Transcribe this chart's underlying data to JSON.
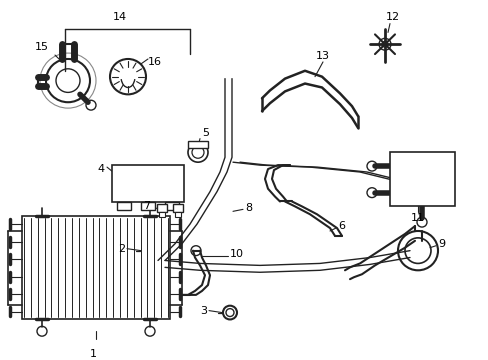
{
  "background_color": "#ffffff",
  "line_color": "#222222",
  "label_color": "#000000",
  "fig_width": 4.89,
  "fig_height": 3.6,
  "dpi": 100
}
